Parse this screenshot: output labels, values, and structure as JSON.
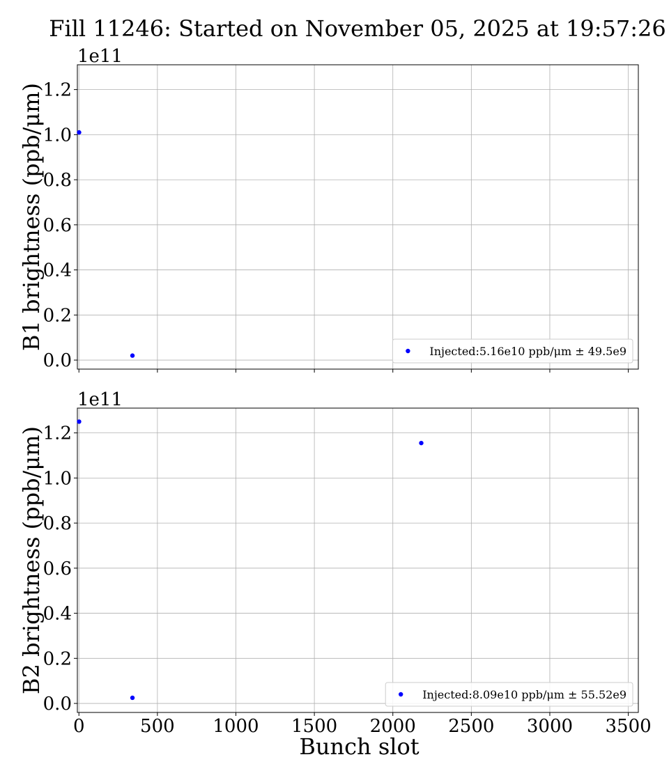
{
  "title": "Fill 11246: Started on November 05, 2025 at 19:57:26",
  "chart_data": [
    {
      "type": "scatter",
      "ylabel": "B1 brightness (ppb/μm)",
      "xlabel": "",
      "offset_text": "1e11",
      "xlim": [
        -10,
        3564
      ],
      "ylim": [
        -0.04,
        1.31
      ],
      "y_scale_factor": 100000000000.0,
      "grid": true,
      "legend_position": "lower right",
      "x_ticks": [
        0,
        500,
        1000,
        1500,
        2000,
        2500,
        3000,
        3500
      ],
      "x_tick_labels_visible": false,
      "y_ticks": [
        0.0,
        0.2,
        0.4,
        0.6,
        0.8,
        1.0,
        1.2
      ],
      "y_tick_labels": [
        "0.0",
        "0.2",
        "0.4",
        "0.6",
        "0.8",
        "1.0",
        "1.2"
      ],
      "series": [
        {
          "name": "Injected:5.16e10 ppb/μm ± 49.5e9",
          "color": "#0000ff",
          "x": [
            1,
            341
          ],
          "y": [
            1.01,
            0.02
          ]
        }
      ]
    },
    {
      "type": "scatter",
      "ylabel": "B2 brightness (ppb/μm)",
      "xlabel": "Bunch slot",
      "offset_text": "1e11",
      "xlim": [
        -10,
        3564
      ],
      "ylim": [
        -0.04,
        1.31
      ],
      "y_scale_factor": 100000000000.0,
      "grid": true,
      "legend_position": "lower right",
      "x_ticks": [
        0,
        500,
        1000,
        1500,
        2000,
        2500,
        3000,
        3500
      ],
      "x_tick_labels": [
        "0",
        "500",
        "1000",
        "1500",
        "2000",
        "2500",
        "3000",
        "3500"
      ],
      "x_tick_labels_visible": true,
      "y_ticks": [
        0.0,
        0.2,
        0.4,
        0.6,
        0.8,
        1.0,
        1.2
      ],
      "y_tick_labels": [
        "0.0",
        "0.2",
        "0.4",
        "0.6",
        "0.8",
        "1.0",
        "1.2"
      ],
      "series": [
        {
          "name": "Injected:8.09e10 ppb/μm ± 55.52e9",
          "color": "#0000ff",
          "x": [
            1,
            341,
            2181
          ],
          "y": [
            1.25,
            0.025,
            1.155
          ]
        }
      ]
    }
  ]
}
